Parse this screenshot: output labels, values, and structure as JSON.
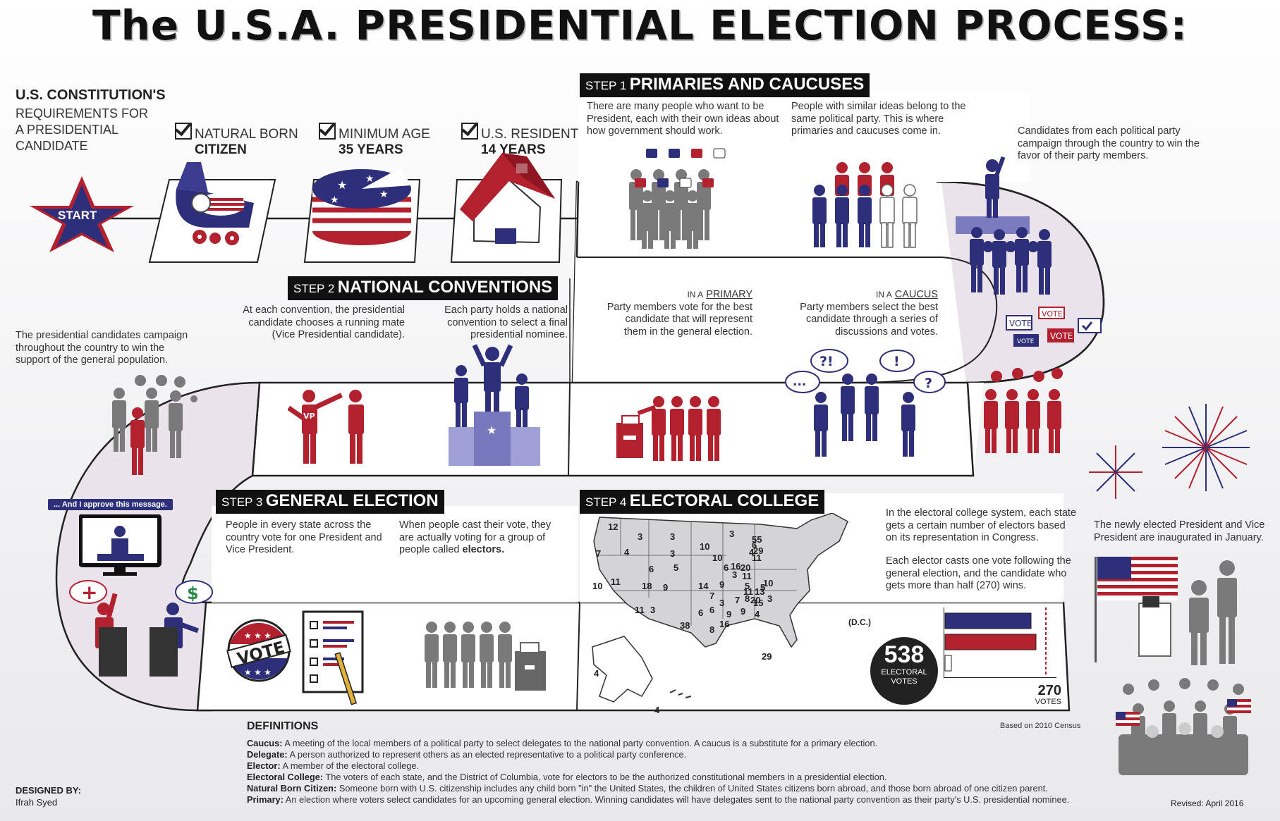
{
  "title": "The U.S.A. PRESIDENTIAL ELECTION PROCESS:",
  "requirements": {
    "heading": "U.S. CONSTITUTION'S",
    "subheading_lines": [
      "REQUIREMENTS FOR",
      "A PRESIDENTIAL",
      "CANDIDATE"
    ],
    "items": [
      {
        "line1": "NATURAL BORN",
        "line2": "CITIZEN",
        "icon": "baby-carriage-icon"
      },
      {
        "line1": "MINIMUM AGE",
        "line2": "35 YEARS",
        "icon": "birthday-cake-icon"
      },
      {
        "line1": "U.S. RESIDENT",
        "line2": "14 YEARS",
        "icon": "house-icon"
      }
    ],
    "start_label": "START"
  },
  "step1": {
    "prefix": "STEP 1",
    "name": "PRIMARIES AND CAUCUSES",
    "text_a": "There are many people who want to be President, each with their own ideas about how government should work.",
    "text_b": "People with similar ideas belong to the same political party. This is where primaries and caucuses come in.",
    "text_c": "Candidates from each political party campaign through the country to win the favor of their party members.",
    "primary_label_prefix": "IN A",
    "primary_label": "PRIMARY",
    "primary_text": "Party members vote for the best candidate that will represent them in the general election.",
    "caucus_label_prefix": "IN A",
    "caucus_label": "CAUCUS",
    "caucus_text": "Party members select the best candidate through a series of discussions and votes.",
    "sign_texts": [
      "VOTE",
      "VOTE",
      "VOTE",
      "VOTE"
    ],
    "bubble_texts": [
      "?!",
      "!",
      "...",
      "?"
    ]
  },
  "step2": {
    "prefix": "STEP 2",
    "name": "NATIONAL CONVENTIONS",
    "text_a": "At each convention, the presidential candidate chooses a running mate (Vice Presidential candidate).",
    "text_b": "Each party holds a national convention to select a final presidential nominee.",
    "campaign_text": "The presidential candidates campaign throughout the country to win the support of the general population.",
    "vp_label": "VP",
    "ad_caption": "... And I approve this message."
  },
  "step3": {
    "prefix": "STEP 3",
    "name": "GENERAL ELECTION",
    "text_a": "People in every state across the country vote for one President and Vice President.",
    "text_b_start": "When people cast their vote, they are actually voting for a group of people called",
    "text_b_bold": "electors.",
    "vote_button": "VOTE",
    "badge_plus": "+",
    "badge_dollar": "$"
  },
  "step4": {
    "prefix": "STEP 4",
    "name": "ELECTORAL COLLEGE",
    "text_a": "In the electoral college system, each state gets a certain number of electors based on its representation in Congress.",
    "text_b": "Each elector casts one vote following the general election, and the candidate who gets more than half (270) wins.",
    "total_number": "538",
    "total_label_1": "ELECTORAL",
    "total_label_2": "VOTES",
    "threshold_number": "270",
    "threshold_label": "VOTES",
    "census_note": "Based on 2010 Census",
    "dc_label": "(D.C.)",
    "map_numbers": [
      "12",
      "7",
      "3",
      "3",
      "4",
      "10",
      "3",
      "6",
      "5",
      "3",
      "10",
      "16",
      "20",
      "4",
      "11",
      "29",
      "6",
      "55",
      "6",
      "9",
      "10",
      "11",
      "18",
      "14",
      "7",
      "3",
      "11",
      "5",
      "9",
      "8",
      "13",
      "10",
      "7",
      "6",
      "15",
      "9",
      "16",
      "38",
      "6",
      "8",
      "9",
      "29",
      "3",
      "4",
      "11",
      "3",
      "4",
      "4",
      "11",
      "20",
      "5",
      "3"
    ],
    "bars": [
      {
        "name": "blue",
        "color": "#2e2f7a",
        "value": 0.81
      },
      {
        "name": "red",
        "color": "#b3202e",
        "value": 0.86
      },
      {
        "name": "empty",
        "color": "#ffffff",
        "value": 0.06
      }
    ]
  },
  "inauguration_text": "The newly elected President and Vice President are inaugurated in January.",
  "definitions": {
    "heading": "DEFINITIONS",
    "items": [
      {
        "term": "Caucus:",
        "text": "A meeting of the local members of a political party to select delegates to the national party convention. A caucus is a substitute for a primary election."
      },
      {
        "term": "Delegate:",
        "text": "A person authorized to represent others as an elected representative to a political party conference."
      },
      {
        "term": "Elector:",
        "text": "A member of the electoral college."
      },
      {
        "term": "Electoral College:",
        "text": "The voters of each state, and the District of Columbia, vote for electors to be the authorized constitutional members in a presidential election."
      },
      {
        "term": "Natural Born Citizen:",
        "text": "Someone born with U.S. citizenship includes any child born \"in\" the United States, the children of United States citizens born abroad, and those born abroad of one citizen parent."
      },
      {
        "term": "Primary:",
        "text": "An election where voters select candidates for an upcoming general election. Winning candidates will have delegates sent to the national party convention as their party's U.S. presidential nominee."
      }
    ]
  },
  "designed_by_label": "DESIGNED BY:",
  "designer": "Ifrah Syed",
  "revised": "Revised: April 2016",
  "colors": {
    "red": "#b3202e",
    "blue": "#2e2f7a",
    "gray": "#7a7a7a",
    "road": "#ffffff",
    "road_shade": "#e6dfe8"
  }
}
